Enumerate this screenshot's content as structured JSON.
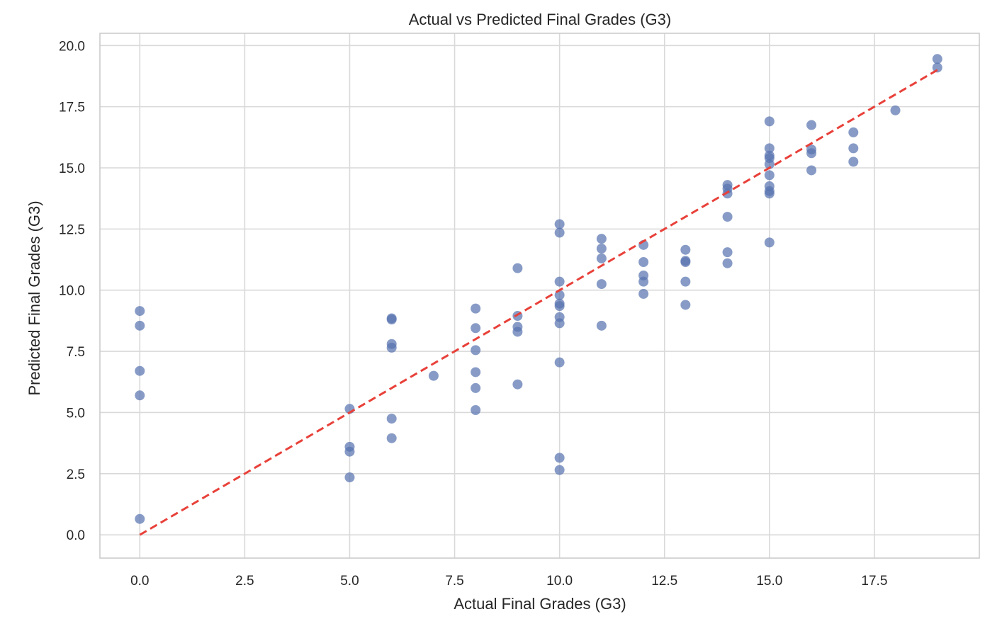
{
  "chart_data": {
    "type": "scatter",
    "title": "Actual vs Predicted Final Grades (G3)",
    "xlabel": "Actual Final Grades (G3)",
    "ylabel": "Predicted Final Grades (G3)",
    "xlim": [
      -0.95,
      20.0
    ],
    "ylim": [
      -0.95,
      20.5
    ],
    "xticks": [
      "0.0",
      "2.5",
      "5.0",
      "7.5",
      "10.0",
      "12.5",
      "15.0",
      "17.5"
    ],
    "yticks": [
      "0.0",
      "2.5",
      "5.0",
      "7.5",
      "10.0",
      "12.5",
      "15.0",
      "17.5",
      "20.0"
    ],
    "grid": true,
    "point_color": "#5975b0",
    "line_color": "#e8413a",
    "reference_line": {
      "x": [
        0,
        19
      ],
      "y": [
        0,
        19
      ],
      "style": "dashed"
    },
    "points": [
      {
        "x": 0,
        "y": 9.15
      },
      {
        "x": 0,
        "y": 8.55
      },
      {
        "x": 0,
        "y": 6.7
      },
      {
        "x": 0,
        "y": 5.7
      },
      {
        "x": 0,
        "y": 0.65
      },
      {
        "x": 5,
        "y": 5.15
      },
      {
        "x": 5,
        "y": 3.6
      },
      {
        "x": 5,
        "y": 3.4
      },
      {
        "x": 5,
        "y": 2.35
      },
      {
        "x": 6,
        "y": 8.85
      },
      {
        "x": 6,
        "y": 8.8
      },
      {
        "x": 6,
        "y": 7.8
      },
      {
        "x": 6,
        "y": 7.65
      },
      {
        "x": 6,
        "y": 4.75
      },
      {
        "x": 6,
        "y": 3.95
      },
      {
        "x": 7,
        "y": 6.5
      },
      {
        "x": 8,
        "y": 9.25
      },
      {
        "x": 8,
        "y": 8.45
      },
      {
        "x": 8,
        "y": 7.55
      },
      {
        "x": 8,
        "y": 6.65
      },
      {
        "x": 8,
        "y": 6.0
      },
      {
        "x": 8,
        "y": 5.1
      },
      {
        "x": 9,
        "y": 10.9
      },
      {
        "x": 9,
        "y": 8.95
      },
      {
        "x": 9,
        "y": 8.5
      },
      {
        "x": 9,
        "y": 8.3
      },
      {
        "x": 9,
        "y": 6.15
      },
      {
        "x": 10,
        "y": 12.7
      },
      {
        "x": 10,
        "y": 12.35
      },
      {
        "x": 10,
        "y": 10.35
      },
      {
        "x": 10,
        "y": 9.8
      },
      {
        "x": 10,
        "y": 9.45
      },
      {
        "x": 10,
        "y": 9.35
      },
      {
        "x": 10,
        "y": 8.9
      },
      {
        "x": 10,
        "y": 8.65
      },
      {
        "x": 10,
        "y": 7.05
      },
      {
        "x": 10,
        "y": 3.15
      },
      {
        "x": 10,
        "y": 2.65
      },
      {
        "x": 11,
        "y": 12.1
      },
      {
        "x": 11,
        "y": 11.7
      },
      {
        "x": 11,
        "y": 11.3
      },
      {
        "x": 11,
        "y": 10.25
      },
      {
        "x": 11,
        "y": 8.55
      },
      {
        "x": 12,
        "y": 11.85
      },
      {
        "x": 12,
        "y": 11.15
      },
      {
        "x": 12,
        "y": 10.6
      },
      {
        "x": 12,
        "y": 10.35
      },
      {
        "x": 12,
        "y": 9.85
      },
      {
        "x": 13,
        "y": 11.65
      },
      {
        "x": 13,
        "y": 11.2
      },
      {
        "x": 13,
        "y": 11.15
      },
      {
        "x": 13,
        "y": 10.35
      },
      {
        "x": 13,
        "y": 9.4
      },
      {
        "x": 14,
        "y": 14.3
      },
      {
        "x": 14,
        "y": 14.15
      },
      {
        "x": 14,
        "y": 13.95
      },
      {
        "x": 14,
        "y": 13.0
      },
      {
        "x": 14,
        "y": 11.55
      },
      {
        "x": 14,
        "y": 11.1
      },
      {
        "x": 15,
        "y": 16.9
      },
      {
        "x": 15,
        "y": 15.8
      },
      {
        "x": 15,
        "y": 15.5
      },
      {
        "x": 15,
        "y": 15.4
      },
      {
        "x": 15,
        "y": 15.15
      },
      {
        "x": 15,
        "y": 14.7
      },
      {
        "x": 15,
        "y": 14.25
      },
      {
        "x": 15,
        "y": 14.05
      },
      {
        "x": 15,
        "y": 13.95
      },
      {
        "x": 15,
        "y": 11.95
      },
      {
        "x": 16,
        "y": 16.75
      },
      {
        "x": 16,
        "y": 15.75
      },
      {
        "x": 16,
        "y": 15.6
      },
      {
        "x": 16,
        "y": 14.9
      },
      {
        "x": 17,
        "y": 16.45
      },
      {
        "x": 17,
        "y": 15.8
      },
      {
        "x": 17,
        "y": 15.25
      },
      {
        "x": 18,
        "y": 17.35
      },
      {
        "x": 19,
        "y": 19.45
      },
      {
        "x": 19,
        "y": 19.1
      }
    ]
  }
}
